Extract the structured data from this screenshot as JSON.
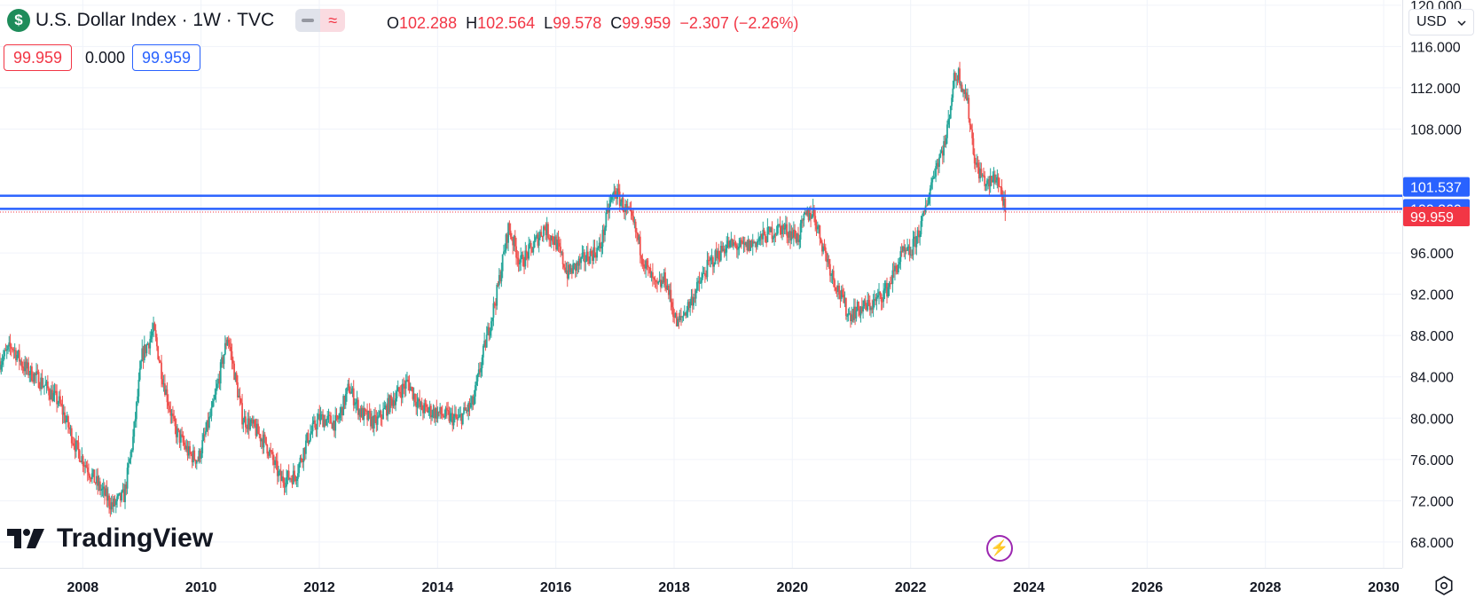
{
  "header": {
    "currency_icon": "$",
    "symbol_title": "U.S. Dollar Index · 1W · TVC",
    "toggle_left_icon": "minus-icon",
    "toggle_right_glyph": "≈",
    "ohlc": {
      "o_label": "O",
      "o_value": "102.288",
      "h_label": "H",
      "h_value": "102.564",
      "l_label": "L",
      "l_value": "99.578",
      "c_label": "C",
      "c_value": "99.959",
      "change": "−2.307 (−2.26%)"
    },
    "pills": {
      "left": "99.959",
      "middle": "0.000",
      "right": "99.959"
    }
  },
  "currency_select": {
    "value": "USD"
  },
  "branding": {
    "logo_text": "TradingView"
  },
  "colors": {
    "up": "#26a69a",
    "down": "#ef5350",
    "line": "#2962ff",
    "last": "#f23645",
    "grid": "#f0f3fa"
  },
  "chart_data": {
    "type": "candlestick",
    "symbol": "U.S. Dollar Index",
    "interval": "1W",
    "exchange": "TVC",
    "x_ticks": [
      "2008",
      "2010",
      "2012",
      "2014",
      "2016",
      "2018",
      "2020",
      "2022",
      "2024",
      "2026",
      "2028",
      "2030"
    ],
    "x_tick_years": [
      2008,
      2010,
      2012,
      2014,
      2016,
      2018,
      2020,
      2022,
      2024,
      2026,
      2028,
      2030
    ],
    "y_ticks": [
      "120.000",
      "116.000",
      "112.000",
      "108.000",
      "96.000",
      "92.000",
      "88.000",
      "84.000",
      "80.000",
      "76.000",
      "72.000",
      "68.000"
    ],
    "y_tick_values": [
      120,
      116,
      112,
      108,
      96,
      92,
      88,
      84,
      80,
      76,
      72,
      68
    ],
    "ylim": [
      65.5,
      120.5
    ],
    "xlim": [
      2006.6,
      2030.3
    ],
    "horizontal_lines": [
      {
        "label": "101.537",
        "value": 101.537,
        "color": "#2962ff"
      },
      {
        "label": "100.269",
        "value": 100.269,
        "color": "#2962ff"
      }
    ],
    "last_price": {
      "label": "99.959",
      "value": 99.959,
      "color": "#f23645"
    },
    "path": [
      [
        2006.6,
        85.5
      ],
      [
        2006.8,
        87.0
      ],
      [
        2007.0,
        85.0
      ],
      [
        2007.3,
        83.5
      ],
      [
        2007.6,
        81.5
      ],
      [
        2007.9,
        77.0
      ],
      [
        2008.2,
        74.0
      ],
      [
        2008.5,
        71.5
      ],
      [
        2008.7,
        72.5
      ],
      [
        2008.85,
        78.0
      ],
      [
        2009.0,
        86.0
      ],
      [
        2009.2,
        88.5
      ],
      [
        2009.35,
        84.0
      ],
      [
        2009.55,
        79.0
      ],
      [
        2009.8,
        76.5
      ],
      [
        2009.95,
        76.0
      ],
      [
        2010.2,
        81.0
      ],
      [
        2010.45,
        88.0
      ],
      [
        2010.7,
        80.0
      ],
      [
        2010.9,
        79.0
      ],
      [
        2011.1,
        77.5
      ],
      [
        2011.35,
        74.0
      ],
      [
        2011.6,
        74.5
      ],
      [
        2011.8,
        78.0
      ],
      [
        2012.0,
        80.0
      ],
      [
        2012.3,
        79.5
      ],
      [
        2012.5,
        83.0
      ],
      [
        2012.7,
        80.5
      ],
      [
        2012.95,
        79.5
      ],
      [
        2013.2,
        81.5
      ],
      [
        2013.5,
        83.5
      ],
      [
        2013.7,
        81.0
      ],
      [
        2014.0,
        80.5
      ],
      [
        2014.35,
        79.8
      ],
      [
        2014.6,
        81.5
      ],
      [
        2014.8,
        87.0
      ],
      [
        2015.0,
        92.0
      ],
      [
        2015.2,
        98.5
      ],
      [
        2015.4,
        95.0
      ],
      [
        2015.6,
        96.5
      ],
      [
        2015.8,
        98.5
      ],
      [
        2016.0,
        97.0
      ],
      [
        2016.2,
        94.0
      ],
      [
        2016.5,
        95.5
      ],
      [
        2016.75,
        96.5
      ],
      [
        2016.9,
        100.5
      ],
      [
        2017.0,
        102.0
      ],
      [
        2017.3,
        99.0
      ],
      [
        2017.5,
        95.0
      ],
      [
        2017.7,
        92.5
      ],
      [
        2017.85,
        93.5
      ],
      [
        2018.05,
        89.0
      ],
      [
        2018.3,
        91.5
      ],
      [
        2018.6,
        95.0
      ],
      [
        2018.9,
        96.8
      ],
      [
        2019.2,
        96.5
      ],
      [
        2019.5,
        97.5
      ],
      [
        2019.8,
        98.5
      ],
      [
        2020.1,
        97.5
      ],
      [
        2020.22,
        99.5
      ],
      [
        2020.35,
        100.0
      ],
      [
        2020.5,
        97.0
      ],
      [
        2020.7,
        93.5
      ],
      [
        2020.95,
        90.0
      ],
      [
        2021.1,
        90.5
      ],
      [
        2021.35,
        91.0
      ],
      [
        2021.6,
        92.5
      ],
      [
        2021.85,
        95.8
      ],
      [
        2022.0,
        96.0
      ],
      [
        2022.2,
        99.0
      ],
      [
        2022.4,
        104.0
      ],
      [
        2022.6,
        107.0
      ],
      [
        2022.72,
        112.5
      ],
      [
        2022.8,
        113.5
      ],
      [
        2022.95,
        111.0
      ],
      [
        2023.1,
        104.5
      ],
      [
        2023.3,
        102.5
      ],
      [
        2023.45,
        103.5
      ],
      [
        2023.55,
        101.5
      ],
      [
        2023.6,
        99.959
      ]
    ]
  }
}
